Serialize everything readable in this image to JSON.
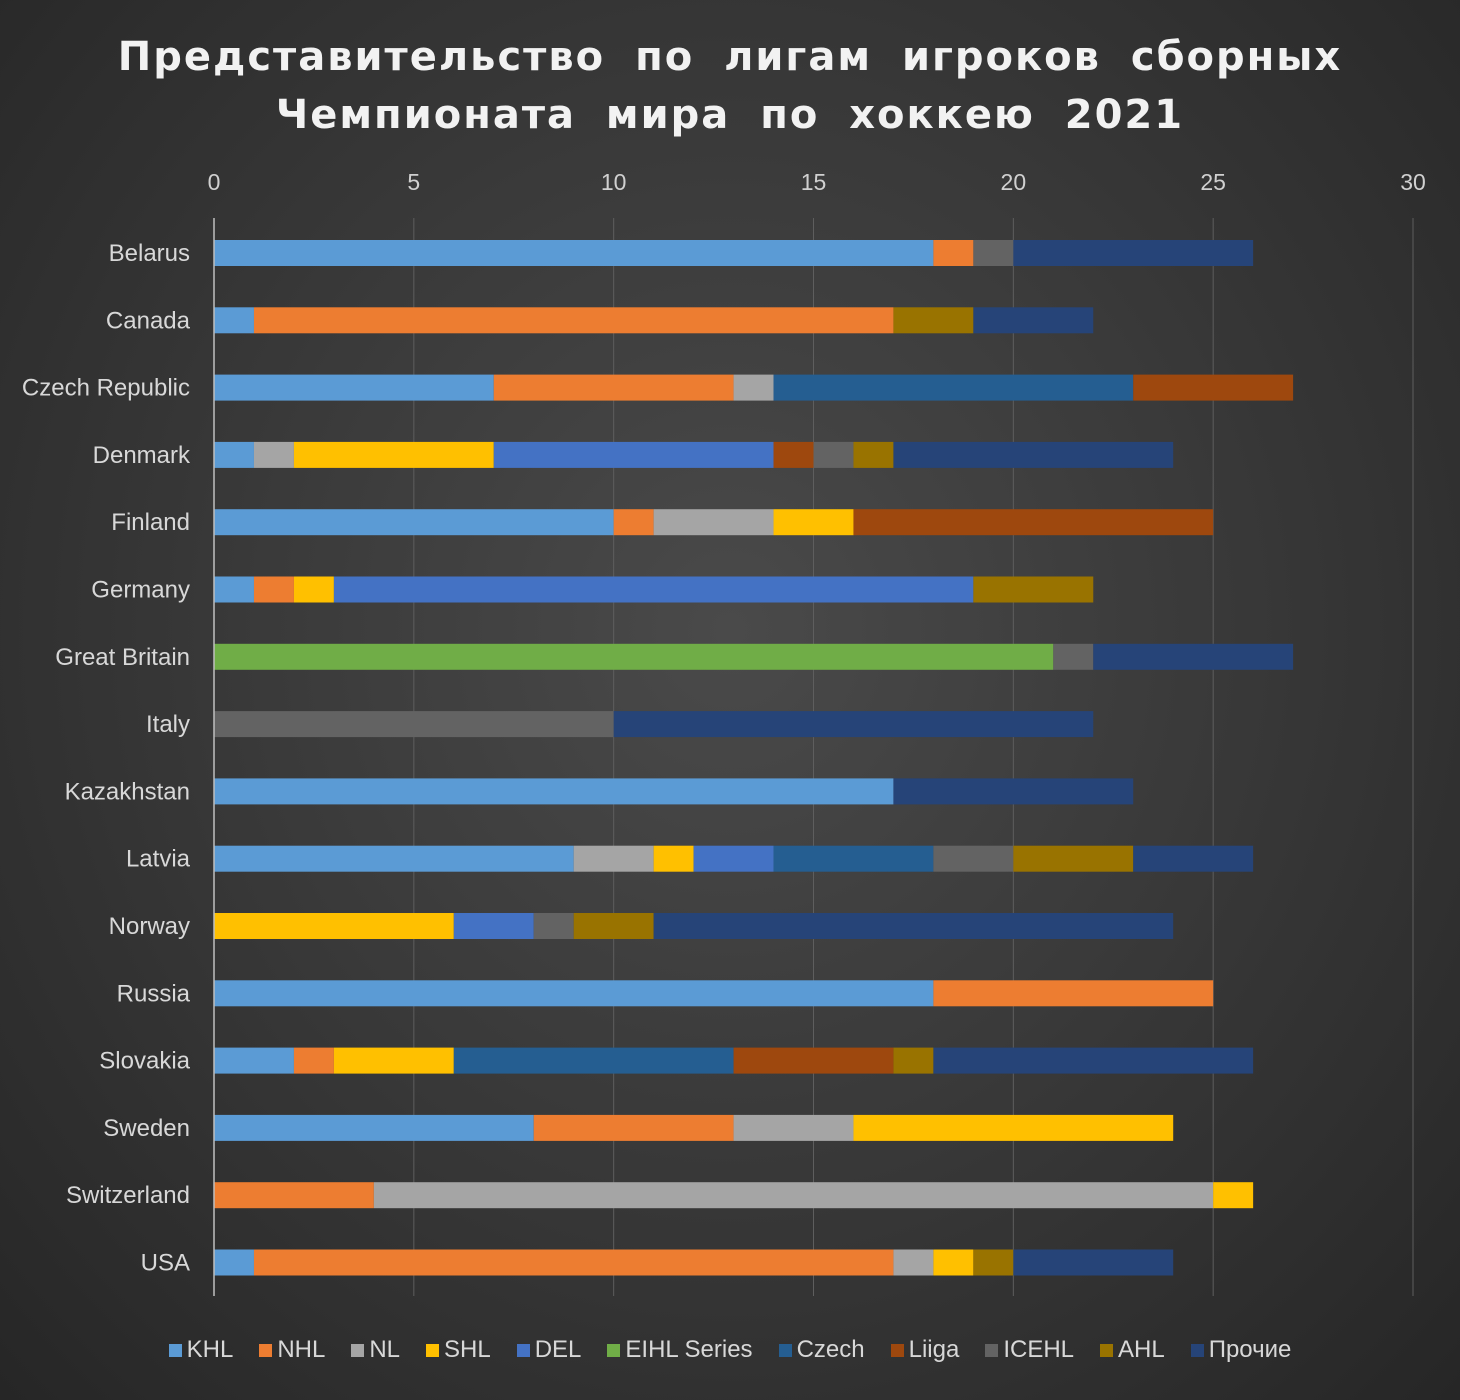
{
  "chart_data": {
    "type": "bar",
    "orientation": "horizontal",
    "stacked": true,
    "title_lines": [
      "Представительство по лигам игроков сборных",
      "Чемпионата мира по хоккею 2021"
    ],
    "xlim": [
      0,
      30
    ],
    "x_ticks": [
      0,
      5,
      10,
      15,
      20,
      25,
      30
    ],
    "legend_position": "bottom",
    "categories": [
      "Belarus",
      "Canada",
      "Czech Republic",
      "Denmark",
      "Finland",
      "Germany",
      "Great Britain",
      "Italy",
      "Kazakhstan",
      "Latvia",
      "Norway",
      "Russia",
      "Slovakia",
      "Sweden",
      "Switzerland",
      "USA"
    ],
    "series": [
      {
        "name": "KHL",
        "color": "#5b9bd5",
        "values": [
          18,
          1,
          7,
          1,
          10,
          1,
          0,
          0,
          17,
          9,
          0,
          18,
          2,
          8,
          0,
          1
        ]
      },
      {
        "name": "NHL",
        "color": "#ed7d31",
        "values": [
          1,
          16,
          6,
          0,
          1,
          1,
          0,
          0,
          0,
          0,
          0,
          7,
          1,
          5,
          4,
          16
        ]
      },
      {
        "name": "NL",
        "color": "#a5a5a5",
        "values": [
          0,
          0,
          1,
          1,
          3,
          0,
          0,
          0,
          0,
          2,
          0,
          0,
          0,
          3,
          21,
          1
        ]
      },
      {
        "name": "SHL",
        "color": "#ffc000",
        "values": [
          0,
          0,
          0,
          5,
          2,
          1,
          0,
          0,
          0,
          1,
          6,
          0,
          3,
          8,
          1,
          1
        ]
      },
      {
        "name": "DEL",
        "color": "#4472c4",
        "values": [
          0,
          0,
          0,
          7,
          0,
          16,
          0,
          0,
          0,
          2,
          2,
          0,
          0,
          0,
          0,
          0
        ]
      },
      {
        "name": "EIHL Series",
        "color": "#70ad47",
        "values": [
          0,
          0,
          0,
          0,
          0,
          0,
          21,
          0,
          0,
          0,
          0,
          0,
          0,
          0,
          0,
          0
        ]
      },
      {
        "name": "Czech",
        "color": "#255e91",
        "values": [
          0,
          0,
          9,
          0,
          0,
          0,
          0,
          0,
          0,
          4,
          0,
          0,
          7,
          0,
          0,
          0
        ]
      },
      {
        "name": "Liiga",
        "color": "#9e480e",
        "values": [
          0,
          0,
          4,
          1,
          9,
          0,
          0,
          0,
          0,
          0,
          0,
          0,
          4,
          0,
          0,
          0
        ]
      },
      {
        "name": "ICEHL",
        "color": "#636363",
        "values": [
          1,
          0,
          0,
          1,
          0,
          0,
          1,
          10,
          0,
          2,
          1,
          0,
          0,
          0,
          0,
          0
        ]
      },
      {
        "name": "AHL",
        "color": "#997300",
        "values": [
          0,
          2,
          0,
          1,
          0,
          3,
          0,
          0,
          0,
          3,
          2,
          0,
          1,
          0,
          0,
          1
        ]
      },
      {
        "name": "Прочие",
        "color": "#264478",
        "values": [
          6,
          3,
          0,
          7,
          0,
          0,
          5,
          12,
          6,
          3,
          13,
          0,
          8,
          0,
          0,
          4
        ]
      }
    ]
  }
}
